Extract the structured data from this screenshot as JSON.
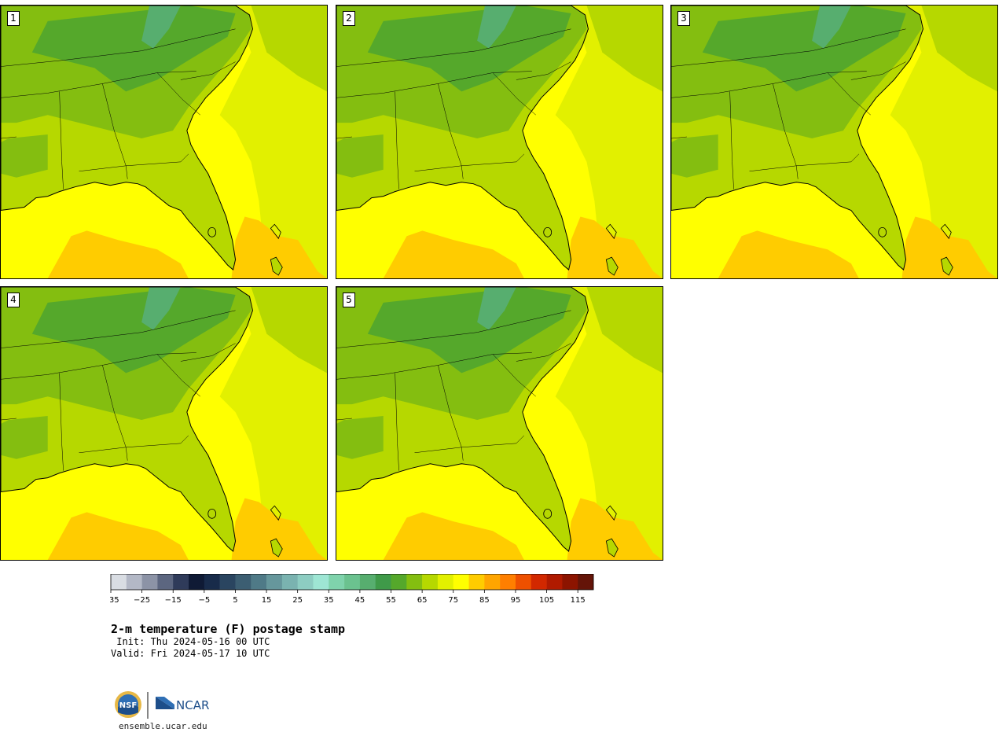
{
  "panels": [
    {
      "label": "1"
    },
    {
      "label": "2"
    },
    {
      "label": "3"
    },
    {
      "label": "4"
    },
    {
      "label": "5"
    }
  ],
  "colorbar": {
    "colors": [
      "#d9dde3",
      "#b3b8c6",
      "#8c93a6",
      "#5c6680",
      "#2f3b5a",
      "#0f1a35",
      "#182b4a",
      "#2a4560",
      "#3c5e72",
      "#4f7a87",
      "#66979c",
      "#7ab3b0",
      "#8dcdc2",
      "#9ee6d4",
      "#7fd3ac",
      "#6bc28f",
      "#57ae6f",
      "#3f9a49",
      "#55a82b",
      "#84be10",
      "#b6d800",
      "#e2f000",
      "#ffff00",
      "#ffcc00",
      "#ffa500",
      "#ff7f00",
      "#ee5000",
      "#d22800",
      "#b01a00",
      "#8c1400",
      "#641408"
    ],
    "tick_labels": [
      "−35",
      "−25",
      "−15",
      "−5",
      "5",
      "15",
      "25",
      "35",
      "45",
      "55",
      "65",
      "75",
      "85",
      "95",
      "105",
      "115"
    ]
  },
  "title": "2-m temperature (F) postage stamp",
  "init": " Init: Thu 2024-05-16 00 UTC",
  "valid": "Valid: Fri 2024-05-17 10 UTC",
  "logo": {
    "left_text": "NSF",
    "right_text": "NCAR"
  },
  "url": "ensemble.ucar.edu",
  "palette": {
    "ocean_warm": "#ffcc00",
    "ocean": "#ffff00",
    "ocean_cool": "#e2f000",
    "land_light": "#b6d800",
    "land_mid": "#84be10",
    "land_dark": "#55a82b",
    "land_darker": "#3f9a49",
    "mountain": "#57ae6f",
    "border": "#000000"
  }
}
